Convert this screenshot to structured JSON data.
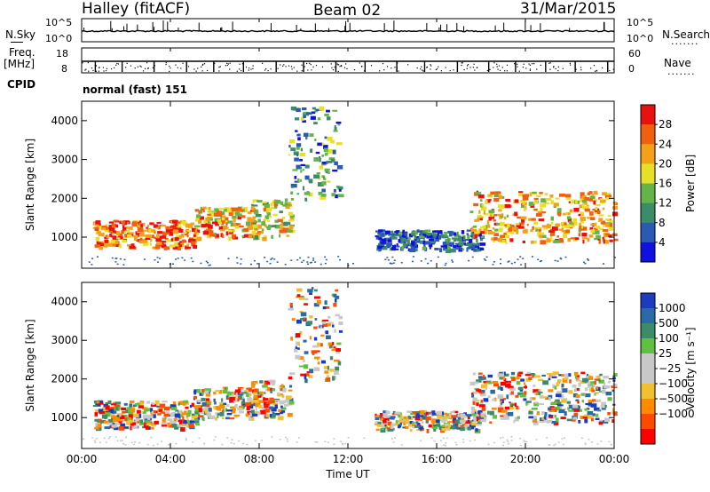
{
  "header": {
    "title": "Halley (fitACF)",
    "beam": "Beam 02",
    "date": "31/Mar/2015"
  },
  "left_labels": {
    "nsky": "N.Sky",
    "freq": "Freq.",
    "freq_unit": "[MHz]",
    "cpid": "CPID"
  },
  "right_labels": {
    "nsearch": "N.Search",
    "nave": "Nave",
    "dots": "......."
  },
  "noise_panel": {
    "left_ticks": [
      "10^5",
      "10^0"
    ],
    "right_ticks": [
      "10^5",
      "10^0"
    ]
  },
  "freq_panel": {
    "left_ticks": [
      "18",
      "8"
    ],
    "right_ticks": [
      "60",
      "0"
    ]
  },
  "cpid_text": "normal (fast) 151",
  "colors": {
    "power": [
      "#1010e0",
      "#2a5ab4",
      "#3c8c6a",
      "#64b44a",
      "#e8e028",
      "#f4a018",
      "#f06010",
      "#e81010"
    ],
    "velocity": [
      "#ff0000",
      "#ff4a00",
      "#ff8c00",
      "#f0c030",
      "#c8c8c8",
      "#c8c8c8",
      "#60c040",
      "#3c8c6a",
      "#2a6aa8",
      "#1c3cc0"
    ]
  },
  "chart_data": [
    {
      "type": "heatmap",
      "name": "power",
      "ylabel": "Slant Range [km]",
      "yticks": [
        "4000",
        "3000",
        "2000",
        "1000"
      ],
      "ylim": [
        200,
        4500
      ],
      "colorbar_label": "Power [dB]",
      "colorbar_ticks": [
        "28",
        "24",
        "20",
        "16",
        "12",
        "8",
        "4"
      ],
      "colorbar_range": [
        0,
        32
      ],
      "echo_bands": [
        {
          "t0": 0.5,
          "t1": 5.2,
          "r0": 750,
          "r1": 1450,
          "level": 6
        },
        {
          "t0": 5.0,
          "t1": 7.8,
          "r0": 1000,
          "r1": 1800,
          "level": 5
        },
        {
          "t0": 7.6,
          "t1": 9.4,
          "r0": 1000,
          "r1": 2000,
          "level": 4
        },
        {
          "t0": 9.3,
          "t1": 11.6,
          "r0": 2000,
          "r1": 4400,
          "level": 2
        },
        {
          "t0": 13.2,
          "t1": 18.0,
          "r0": 700,
          "r1": 1200,
          "level": 1
        },
        {
          "t0": 17.5,
          "t1": 24.0,
          "r0": 900,
          "r1": 2200,
          "level": 5
        }
      ]
    },
    {
      "type": "heatmap",
      "name": "velocity",
      "ylabel": "Slant Range [km]",
      "xlabel": "Time UT",
      "xticks": [
        "00:00",
        "04:00",
        "08:00",
        "12:00",
        "16:00",
        "20:00",
        "00:00"
      ],
      "yticks": [
        "4000",
        "3000",
        "2000",
        "1000"
      ],
      "ylim": [
        200,
        4500
      ],
      "colorbar_label": "Velocity [m s⁻¹]",
      "colorbar_ticks": [
        "1000",
        "500",
        "100",
        "25",
        "−25",
        "−100",
        "−500",
        "−1000"
      ]
    }
  ]
}
